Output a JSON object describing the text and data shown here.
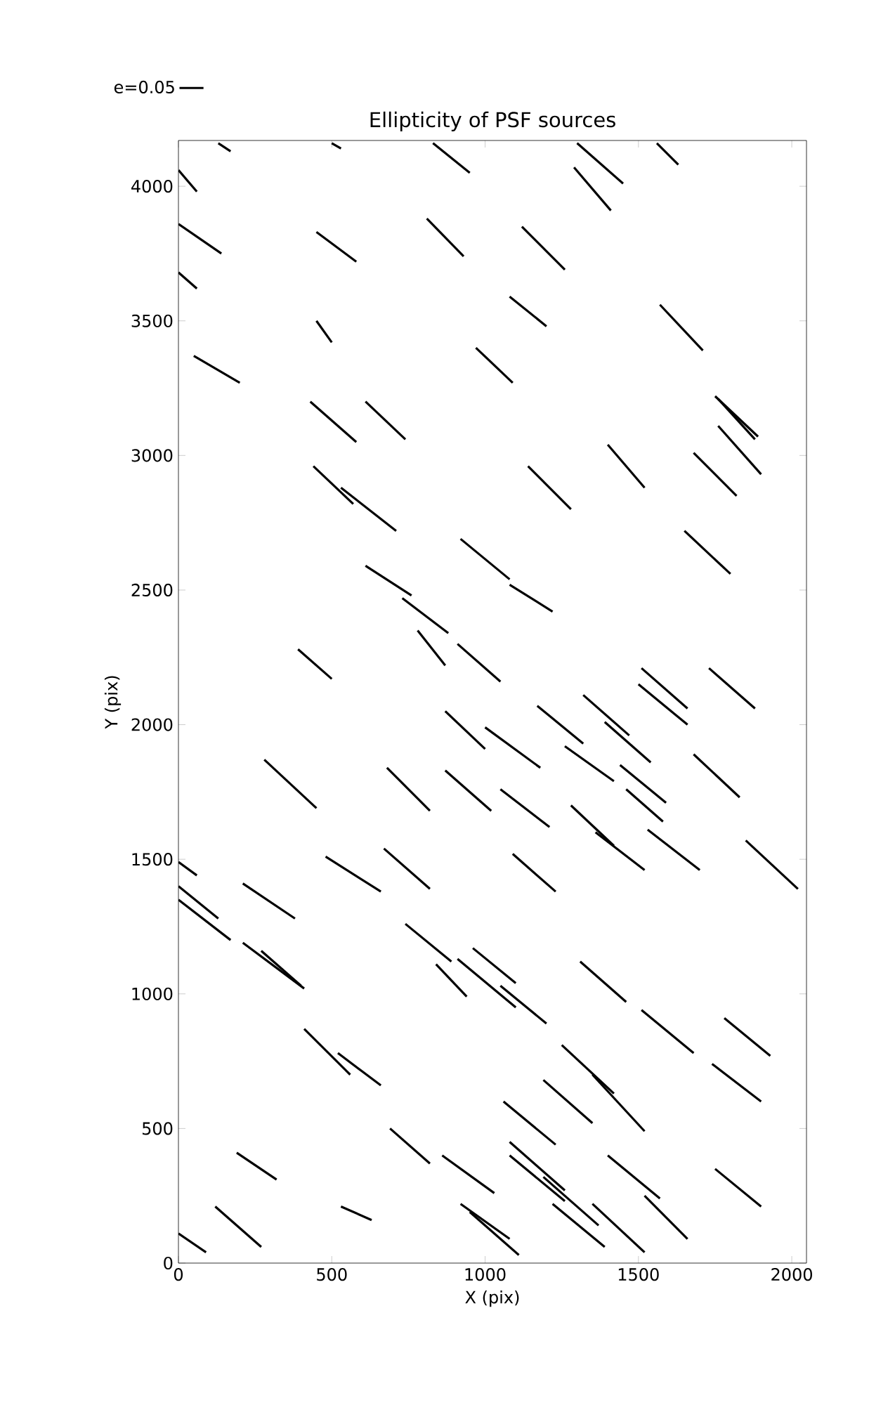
{
  "chart_data": {
    "type": "line",
    "title": "Ellipticity of PSF sources",
    "xlabel": "X (pix)",
    "ylabel": "Y (pix)",
    "xlim": [
      0,
      2048
    ],
    "ylim": [
      0,
      4170
    ],
    "xticks": [
      0,
      500,
      1000,
      1500,
      2000
    ],
    "yticks": [
      0,
      500,
      1000,
      1500,
      2000,
      2500,
      3000,
      3500,
      4000
    ],
    "legend": "top left",
    "marker": "none",
    "line_style": "solid",
    "series": [
      {
        "name": "e=0.05",
        "color": "#000000",
        "x": [
          130,
          170
        ],
        "values": [
          4160,
          4130
        ]
      },
      {
        "color": "#000000",
        "x": [
          500,
          530
        ],
        "values": [
          4160,
          4140
        ]
      },
      {
        "color": "#000000",
        "x": [
          830,
          950
        ],
        "values": [
          4160,
          4050
        ]
      },
      {
        "color": "#000000",
        "x": [
          0,
          60
        ],
        "values": [
          4060,
          3980
        ]
      },
      {
        "color": "#000000",
        "x": [
          0,
          140
        ],
        "values": [
          3860,
          3750
        ]
      },
      {
        "color": "#000000",
        "x": [
          450,
          580
        ],
        "values": [
          3830,
          3720
        ]
      },
      {
        "color": "#000000",
        "x": [
          810,
          930
        ],
        "values": [
          3880,
          3740
        ]
      },
      {
        "color": "#000000",
        "x": [
          0,
          60
        ],
        "values": [
          3680,
          3620
        ]
      },
      {
        "color": "#000000",
        "x": [
          450,
          500
        ],
        "values": [
          3500,
          3420
        ]
      },
      {
        "color": "#000000",
        "x": [
          50,
          200
        ],
        "values": [
          3370,
          3270
        ]
      },
      {
        "color": "#000000",
        "x": [
          430,
          580
        ],
        "values": [
          3200,
          3050
        ]
      },
      {
        "color": "#000000",
        "x": [
          610,
          740
        ],
        "values": [
          3200,
          3060
        ]
      },
      {
        "color": "#000000",
        "x": [
          440,
          570
        ],
        "values": [
          2960,
          2820
        ]
      },
      {
        "color": "#000000",
        "x": [
          530,
          710
        ],
        "values": [
          2880,
          2720
        ]
      },
      {
        "color": "#000000",
        "x": [
          1300,
          1450
        ],
        "values": [
          4160,
          4010
        ]
      },
      {
        "color": "#000000",
        "x": [
          1560,
          1630
        ],
        "values": [
          4160,
          4080
        ]
      },
      {
        "color": "#000000",
        "x": [
          1290,
          1410
        ],
        "values": [
          4070,
          3910
        ]
      },
      {
        "color": "#000000",
        "x": [
          1120,
          1260
        ],
        "values": [
          3850,
          3690
        ]
      },
      {
        "color": "#000000",
        "x": [
          1080,
          1200
        ],
        "values": [
          3590,
          3480
        ]
      },
      {
        "color": "#000000",
        "x": [
          1570,
          1710
        ],
        "values": [
          3560,
          3390
        ]
      },
      {
        "color": "#000000",
        "x": [
          970,
          1090
        ],
        "values": [
          3400,
          3270
        ]
      },
      {
        "color": "#000000",
        "x": [
          1750,
          1890
        ],
        "values": [
          3220,
          3070
        ]
      },
      {
        "color": "#000000",
        "x": [
          1760,
          1880
        ],
        "values": [
          3210,
          3060
        ]
      },
      {
        "color": "#000000",
        "x": [
          1760,
          1900
        ],
        "values": [
          3110,
          2930
        ]
      },
      {
        "color": "#000000",
        "x": [
          1680,
          1820
        ],
        "values": [
          3010,
          2850
        ]
      },
      {
        "color": "#000000",
        "x": [
          1400,
          1520
        ],
        "values": [
          3040,
          2880
        ]
      },
      {
        "color": "#000000",
        "x": [
          1140,
          1280
        ],
        "values": [
          2960,
          2800
        ]
      },
      {
        "color": "#000000",
        "x": [
          920,
          1080
        ],
        "values": [
          2690,
          2540
        ]
      },
      {
        "color": "#000000",
        "x": [
          610,
          760
        ],
        "values": [
          2590,
          2480
        ]
      },
      {
        "color": "#000000",
        "x": [
          730,
          880
        ],
        "values": [
          2470,
          2340
        ]
      },
      {
        "color": "#000000",
        "x": [
          780,
          870
        ],
        "values": [
          2350,
          2220
        ]
      },
      {
        "color": "#000000",
        "x": [
          390,
          500
        ],
        "values": [
          2280,
          2170
        ]
      },
      {
        "color": "#000000",
        "x": [
          910,
          1050
        ],
        "values": [
          2300,
          2160
        ]
      },
      {
        "color": "#000000",
        "x": [
          870,
          1000
        ],
        "values": [
          2050,
          1910
        ]
      },
      {
        "color": "#000000",
        "x": [
          1000,
          1180
        ],
        "values": [
          1990,
          1840
        ]
      },
      {
        "color": "#000000",
        "x": [
          280,
          450
        ],
        "values": [
          1870,
          1690
        ]
      },
      {
        "color": "#000000",
        "x": [
          680,
          820
        ],
        "values": [
          1840,
          1680
        ]
      },
      {
        "color": "#000000",
        "x": [
          870,
          1020
        ],
        "values": [
          1830,
          1680
        ]
      },
      {
        "color": "#000000",
        "x": [
          0,
          60
        ],
        "values": [
          1490,
          1440
        ]
      },
      {
        "color": "#000000",
        "x": [
          480,
          660
        ],
        "values": [
          1510,
          1380
        ]
      },
      {
        "color": "#000000",
        "x": [
          670,
          820
        ],
        "values": [
          1540,
          1390
        ]
      },
      {
        "color": "#000000",
        "x": [
          1650,
          1800
        ],
        "values": [
          2720,
          2560
        ]
      },
      {
        "color": "#000000",
        "x": [
          1080,
          1220
        ],
        "values": [
          2520,
          2420
        ]
      },
      {
        "color": "#000000",
        "x": [
          1510,
          1660
        ],
        "values": [
          2210,
          2060
        ]
      },
      {
        "color": "#000000",
        "x": [
          1500,
          1660
        ],
        "values": [
          2150,
          2000
        ]
      },
      {
        "color": "#000000",
        "x": [
          1730,
          1880
        ],
        "values": [
          2210,
          2060
        ]
      },
      {
        "color": "#000000",
        "x": [
          1320,
          1470
        ],
        "values": [
          2110,
          1960
        ]
      },
      {
        "color": "#000000",
        "x": [
          1170,
          1320
        ],
        "values": [
          2070,
          1930
        ]
      },
      {
        "color": "#000000",
        "x": [
          1390,
          1540
        ],
        "values": [
          2010,
          1860
        ]
      },
      {
        "color": "#000000",
        "x": [
          1260,
          1420
        ],
        "values": [
          1920,
          1790
        ]
      },
      {
        "color": "#000000",
        "x": [
          1460,
          1580
        ],
        "values": [
          1760,
          1640
        ]
      },
      {
        "color": "#000000",
        "x": [
          1440,
          1590
        ],
        "values": [
          1850,
          1710
        ]
      },
      {
        "color": "#000000",
        "x": [
          1680,
          1830
        ],
        "values": [
          1890,
          1730
        ]
      },
      {
        "color": "#000000",
        "x": [
          1050,
          1210
        ],
        "values": [
          1760,
          1620
        ]
      },
      {
        "color": "#000000",
        "x": [
          1280,
          1420
        ],
        "values": [
          1700,
          1550
        ]
      },
      {
        "color": "#000000",
        "x": [
          1360,
          1520
        ],
        "values": [
          1600,
          1460
        ]
      },
      {
        "color": "#000000",
        "x": [
          1530,
          1700
        ],
        "values": [
          1610,
          1460
        ]
      },
      {
        "color": "#000000",
        "x": [
          1850,
          2020
        ],
        "values": [
          1570,
          1390
        ]
      },
      {
        "color": "#000000",
        "x": [
          1090,
          1230
        ],
        "values": [
          1520,
          1380
        ]
      },
      {
        "color": "#000000",
        "x": [
          0,
          130
        ],
        "values": [
          1400,
          1280
        ]
      },
      {
        "color": "#000000",
        "x": [
          0,
          170
        ],
        "values": [
          1350,
          1200
        ]
      },
      {
        "color": "#000000",
        "x": [
          210,
          380
        ],
        "values": [
          1410,
          1280
        ]
      },
      {
        "color": "#000000",
        "x": [
          210,
          410
        ],
        "values": [
          1190,
          1020
        ]
      },
      {
        "color": "#000000",
        "x": [
          270,
          400
        ],
        "values": [
          1160,
          1030
        ]
      },
      {
        "color": "#000000",
        "x": [
          740,
          890
        ],
        "values": [
          1260,
          1120
        ]
      },
      {
        "color": "#000000",
        "x": [
          840,
          940
        ],
        "values": [
          1110,
          990
        ]
      },
      {
        "color": "#000000",
        "x": [
          910,
          1100
        ],
        "values": [
          1130,
          950
        ]
      },
      {
        "color": "#000000",
        "x": [
          960,
          1100
        ],
        "values": [
          1170,
          1040
        ]
      },
      {
        "color": "#000000",
        "x": [
          410,
          560
        ],
        "values": [
          870,
          700
        ]
      },
      {
        "color": "#000000",
        "x": [
          520,
          660
        ],
        "values": [
          780,
          660
        ]
      },
      {
        "color": "#000000",
        "x": [
          690,
          820
        ],
        "values": [
          500,
          370
        ]
      },
      {
        "color": "#000000",
        "x": [
          860,
          1030
        ],
        "values": [
          400,
          260
        ]
      },
      {
        "color": "#000000",
        "x": [
          190,
          320
        ],
        "values": [
          410,
          310
        ]
      },
      {
        "color": "#000000",
        "x": [
          120,
          270
        ],
        "values": [
          210,
          60
        ]
      },
      {
        "color": "#000000",
        "x": [
          0,
          90
        ],
        "values": [
          110,
          40
        ]
      },
      {
        "color": "#000000",
        "x": [
          530,
          630
        ],
        "values": [
          210,
          160
        ]
      },
      {
        "color": "#000000",
        "x": [
          920,
          1080
        ],
        "values": [
          220,
          90
        ]
      },
      {
        "color": "#000000",
        "x": [
          950,
          1110
        ],
        "values": [
          190,
          30
        ]
      },
      {
        "color": "#000000",
        "x": [
          1050,
          1200
        ],
        "values": [
          1030,
          890
        ]
      },
      {
        "color": "#000000",
        "x": [
          1310,
          1460
        ],
        "values": [
          1120,
          970
        ]
      },
      {
        "color": "#000000",
        "x": [
          1510,
          1680
        ],
        "values": [
          940,
          780
        ]
      },
      {
        "color": "#000000",
        "x": [
          1780,
          1930
        ],
        "values": [
          910,
          770
        ]
      },
      {
        "color": "#000000",
        "x": [
          1250,
          1420
        ],
        "values": [
          810,
          630
        ]
      },
      {
        "color": "#000000",
        "x": [
          1350,
          1520
        ],
        "values": [
          700,
          490
        ]
      },
      {
        "color": "#000000",
        "x": [
          1190,
          1350
        ],
        "values": [
          680,
          520
        ]
      },
      {
        "color": "#000000",
        "x": [
          1740,
          1900
        ],
        "values": [
          740,
          600
        ]
      },
      {
        "color": "#000000",
        "x": [
          1060,
          1230
        ],
        "values": [
          600,
          440
        ]
      },
      {
        "color": "#000000",
        "x": [
          1080,
          1260
        ],
        "values": [
          450,
          270
        ]
      },
      {
        "color": "#000000",
        "x": [
          1080,
          1260
        ],
        "values": [
          400,
          230
        ]
      },
      {
        "color": "#000000",
        "x": [
          1190,
          1370
        ],
        "values": [
          320,
          140
        ]
      },
      {
        "color": "#000000",
        "x": [
          1400,
          1570
        ],
        "values": [
          400,
          240
        ]
      },
      {
        "color": "#000000",
        "x": [
          1750,
          1900
        ],
        "values": [
          350,
          210
        ]
      },
      {
        "color": "#000000",
        "x": [
          1220,
          1390
        ],
        "values": [
          220,
          60
        ]
      },
      {
        "color": "#000000",
        "x": [
          1350,
          1520
        ],
        "values": [
          220,
          40
        ]
      },
      {
        "color": "#000000",
        "x": [
          1520,
          1660
        ],
        "values": [
          250,
          90
        ]
      }
    ]
  }
}
